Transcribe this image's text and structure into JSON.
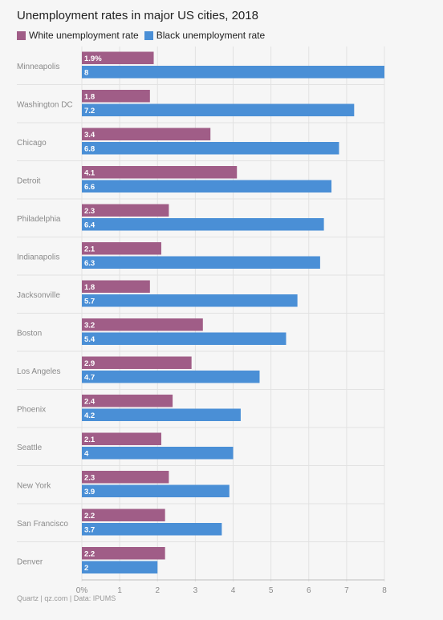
{
  "title": "Unemployment rates in major US cities, 2018",
  "source": "Quartz | qz.com | Data: IPUMS",
  "colors": {
    "white": "#a05d87",
    "black": "#4a8fd6",
    "grid": "#e2e2e2",
    "text": "#222222",
    "muted": "#8a8a8a"
  },
  "chart_data": {
    "type": "bar",
    "orientation": "horizontal",
    "categories": [
      "Minneapolis",
      "Washington DC",
      "Chicago",
      "Detroit",
      "Philadelphia",
      "Indianapolis",
      "Jacksonville",
      "Boston",
      "Los Angeles",
      "Phoenix",
      "Seattle",
      "New York",
      "San Francisco",
      "Denver"
    ],
    "series": [
      {
        "name": "White unemployment rate",
        "values": [
          1.9,
          1.8,
          3.4,
          4.1,
          2.3,
          2.1,
          1.8,
          3.2,
          2.9,
          2.4,
          2.1,
          2.3,
          2.2,
          2.2
        ],
        "labels": [
          "1.9%",
          "1.8",
          "3.4",
          "4.1",
          "2.3",
          "2.1",
          "1.8",
          "3.2",
          "2.9",
          "2.4",
          "2.1",
          "2.3",
          "2.2",
          "2.2"
        ]
      },
      {
        "name": "Black unemployment rate",
        "values": [
          8,
          7.2,
          6.8,
          6.6,
          6.4,
          6.3,
          5.7,
          5.4,
          4.7,
          4.2,
          4,
          3.9,
          3.7,
          2
        ],
        "labels": [
          "8",
          "7.2",
          "6.8",
          "6.6",
          "6.4",
          "6.3",
          "5.7",
          "5.4",
          "4.7",
          "4.2",
          "4",
          "3.9",
          "3.7",
          "2"
        ]
      }
    ],
    "xticks": [
      "0%",
      "1",
      "2",
      "3",
      "4",
      "5",
      "6",
      "7",
      "8"
    ],
    "xlim": [
      0,
      8
    ],
    "grid": true,
    "legend_position": "top-left"
  }
}
